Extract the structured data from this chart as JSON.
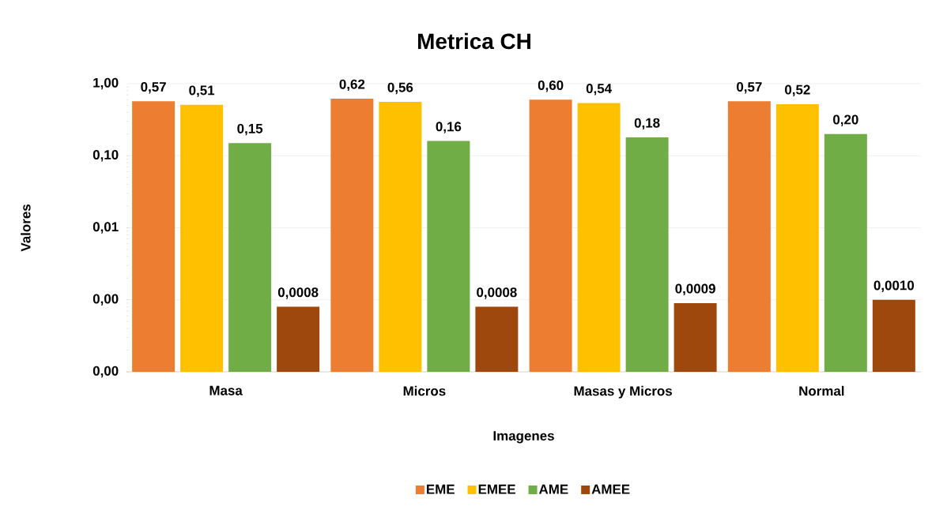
{
  "chart_data": {
    "type": "bar",
    "title": "Metrica CH",
    "xlabel": "Imagenes",
    "ylabel": "Valores",
    "categories": [
      "Masa",
      "Micros",
      "Masas y Micros",
      "Normal"
    ],
    "series": [
      {
        "name": "EME",
        "color": "#ed7d31",
        "values": [
          0.57,
          0.62,
          0.6,
          0.57
        ],
        "value_labels": [
          "0,57",
          "0,62",
          "0,60",
          "0,57"
        ]
      },
      {
        "name": "EMEE",
        "color": "#ffc000",
        "values": [
          0.51,
          0.56,
          0.54,
          0.52
        ],
        "value_labels": [
          "0,51",
          "0,56",
          "0,54",
          "0,52"
        ]
      },
      {
        "name": "AME",
        "color": "#70ad47",
        "values": [
          0.15,
          0.16,
          0.18,
          0.2
        ],
        "value_labels": [
          "0,15",
          "0,16",
          "0,18",
          "0,20"
        ]
      },
      {
        "name": "AMEE",
        "color": "#9e480e",
        "values": [
          0.0008,
          0.0008,
          0.0009,
          0.001
        ],
        "value_labels": [
          "0,0008",
          "0,0008",
          "0,0009",
          "0,0010"
        ]
      }
    ],
    "log": "y",
    "ylim": [
      0.0001,
      1
    ],
    "yticks": [
      {
        "value": 0.0001,
        "label": "0,00"
      },
      {
        "value": 0.001,
        "label": "0,00"
      },
      {
        "value": 0.01,
        "label": "0,01"
      },
      {
        "value": 0.1,
        "label": "0,10"
      },
      {
        "value": 1,
        "label": "1,00"
      }
    ],
    "grid": "y",
    "legend": "bottom"
  }
}
